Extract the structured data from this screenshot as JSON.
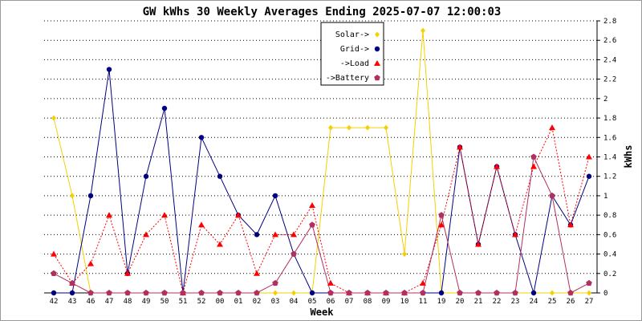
{
  "chart_data": {
    "type": "line",
    "title": "GW kWhs 30 Weekly Averages Ending 2025-07-07 12:00:03",
    "xlabel": "Week",
    "ylabel": "kWhs",
    "categories": [
      "42",
      "43",
      "46",
      "47",
      "48",
      "49",
      "50",
      "51",
      "52",
      "00",
      "01",
      "02",
      "03",
      "04",
      "05",
      "06",
      "07",
      "08",
      "09",
      "10",
      "11",
      "19",
      "20",
      "21",
      "22",
      "23",
      "24",
      "25",
      "26",
      "27"
    ],
    "ylim": [
      0,
      2.8
    ],
    "yticks": [
      "0",
      "0.2",
      "0.4",
      "0.6",
      "0.8",
      "1",
      "1.2",
      "1.4",
      "1.6",
      "1.8",
      "2",
      "2.2",
      "2.4",
      "2.6",
      "2.8"
    ],
    "grid": true,
    "legend_position": "top-center",
    "series": [
      {
        "name": "Solar->",
        "color": "#f5d000",
        "marker": "diamond",
        "dash": false,
        "values": [
          1.8,
          1.0,
          0,
          0,
          0,
          0,
          0,
          0,
          0,
          0,
          0,
          0,
          0,
          0,
          0,
          1.7,
          1.7,
          1.7,
          1.7,
          0.4,
          2.7,
          0,
          0,
          0,
          0,
          0,
          0,
          0,
          0,
          0
        ]
      },
      {
        "name": "Grid->",
        "color": "#000080",
        "marker": "circle",
        "dash": false,
        "values": [
          0,
          0,
          1.0,
          2.3,
          0.2,
          1.2,
          1.9,
          0,
          1.6,
          1.2,
          0.8,
          0.6,
          1.0,
          0.4,
          0,
          0,
          0,
          0,
          0,
          0,
          0,
          0,
          1.5,
          0.5,
          1.3,
          0.6,
          0,
          1.0,
          0.7,
          1.2
        ]
      },
      {
        "name": "->Load",
        "color": "#ff0000",
        "marker": "triangle",
        "dash": true,
        "values": [
          0.4,
          0.1,
          0.3,
          0.8,
          0.2,
          0.6,
          0.8,
          0,
          0.7,
          0.5,
          0.8,
          0.2,
          0.6,
          0.6,
          0.9,
          0.1,
          0,
          0,
          0,
          0,
          0.1,
          0.7,
          1.5,
          0.5,
          1.3,
          0.6,
          1.3,
          1.7,
          0.7,
          1.4
        ]
      },
      {
        "name": "->Battery",
        "color": "#b03060",
        "marker": "pentagon",
        "dash": false,
        "values": [
          0.2,
          0.1,
          0,
          0,
          0,
          0,
          0,
          0,
          0,
          0,
          0,
          0,
          0.1,
          0.4,
          0.7,
          0,
          0,
          0,
          0,
          0,
          0,
          0.8,
          0,
          0,
          0,
          0,
          1.4,
          1.0,
          0,
          0.1
        ]
      }
    ]
  }
}
